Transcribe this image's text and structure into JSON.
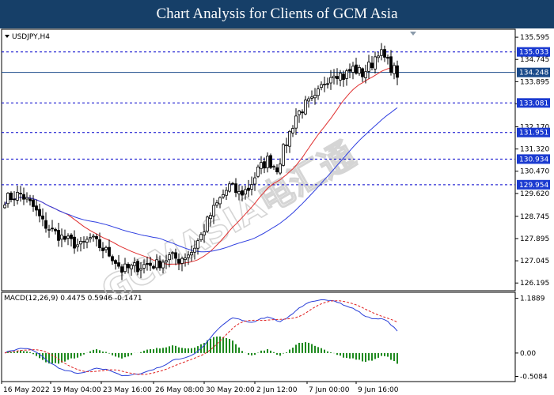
{
  "header": {
    "title": "Chart Analysis for Clients of GCM Asia"
  },
  "watermark": "GCMASIA电汇通",
  "chart_data": [
    {
      "type": "candlestick",
      "symbol_label": "USDJPY,H4",
      "ylim": [
        125.9,
        135.9
      ],
      "y_ticks": [
        "135.595",
        "134.745",
        "133.895",
        "133.045",
        "132.170",
        "131.320",
        "130.470",
        "129.620",
        "128.745",
        "127.895",
        "127.045",
        "126.195"
      ],
      "levels": [
        {
          "label": "135.033",
          "value": 135.033,
          "style": "dashed",
          "color": "#0000cc"
        },
        {
          "label": "134.248",
          "value": 134.248,
          "style": "solid",
          "color": "#1a4a8a"
        },
        {
          "label": "133.081",
          "value": 133.081,
          "style": "dashed",
          "color": "#0000cc"
        },
        {
          "label": "131.951",
          "value": 131.951,
          "style": "dashed",
          "color": "#0000cc"
        },
        {
          "label": "130.934",
          "value": 130.934,
          "style": "dashed",
          "color": "#0000cc"
        },
        {
          "label": "129.954",
          "value": 129.954,
          "style": "dashed",
          "color": "#0000cc"
        }
      ],
      "x_labels": [
        "16 May 2022",
        "19 May 04:00",
        "23 May 16:00",
        "26 May 08:00",
        "30 May 20:00",
        "2 Jun 12:00",
        "7 Jun 00:00",
        "9 Jun 16:00"
      ],
      "price_anchors": [
        [
          0,
          129.4
        ],
        [
          5,
          129.6
        ],
        [
          9,
          129.1
        ],
        [
          12,
          128.5
        ],
        [
          16,
          128.1
        ],
        [
          20,
          127.8
        ],
        [
          24,
          127.6
        ],
        [
          27,
          127.9
        ],
        [
          30,
          127.6
        ],
        [
          34,
          127.2
        ],
        [
          37,
          126.7
        ],
        [
          41,
          126.8
        ],
        [
          45,
          126.9
        ],
        [
          48,
          126.9
        ],
        [
          52,
          127.2
        ],
        [
          55,
          127.1
        ],
        [
          59,
          127.4
        ],
        [
          62,
          128.0
        ],
        [
          65,
          128.8
        ],
        [
          68,
          129.4
        ],
        [
          71,
          129.9
        ],
        [
          74,
          129.6
        ],
        [
          77,
          129.8
        ],
        [
          80,
          130.5
        ],
        [
          83,
          130.9
        ],
        [
          86,
          130.6
        ],
        [
          89,
          131.6
        ],
        [
          92,
          132.6
        ],
        [
          95,
          133.0
        ],
        [
          98,
          133.2
        ],
        [
          101,
          133.9
        ],
        [
          104,
          134.3
        ],
        [
          107,
          134.1
        ],
        [
          110,
          134.4
        ],
        [
          113,
          134.2
        ],
        [
          116,
          134.6
        ],
        [
          118,
          135.1
        ],
        [
          121,
          134.6
        ],
        [
          124,
          134.2
        ]
      ],
      "candle_count": 125,
      "series": [
        {
          "name": "MA fast",
          "color": "#e03030"
        },
        {
          "name": "MA slow",
          "color": "#2f3fe0"
        }
      ]
    },
    {
      "type": "macd",
      "label": "MACD(12,26,9) 0.4475 0.5946 -0.1471",
      "ylim": [
        -0.62,
        1.32
      ],
      "y_ticks": [
        "1.1889",
        "0.00",
        "-0.5084"
      ],
      "series": [
        {
          "name": "MACD",
          "color": "#2a3fd8"
        },
        {
          "name": "Signal",
          "color": "#e02020"
        },
        {
          "name": "Histogram",
          "color": "#1f8a1f"
        }
      ]
    }
  ]
}
